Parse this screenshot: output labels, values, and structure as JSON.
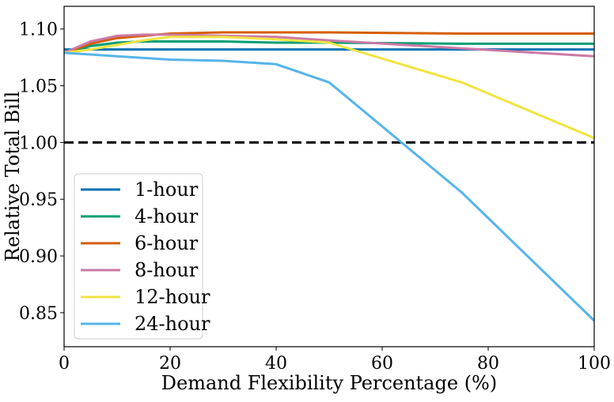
{
  "chart_data": {
    "type": "line",
    "title": "",
    "xlabel": "Demand Flexibility Percentage (%)",
    "ylabel": "Relative Total Bill",
    "xlim": [
      0,
      100
    ],
    "ylim": [
      0.82,
      1.12
    ],
    "xticks": [
      "0",
      "20",
      "40",
      "60",
      "80",
      "100"
    ],
    "yticks": [
      "0.85",
      "0.90",
      "0.95",
      "1.00",
      "1.05",
      "1.10"
    ],
    "grid": false,
    "legend_position": "lower-left",
    "reference_line": {
      "y": 1.0,
      "style": "dashed",
      "color": "#000000"
    },
    "series": [
      {
        "name": "1-hour",
        "color": "#0072b2",
        "x": [
          0,
          5,
          10,
          15,
          20,
          30,
          40,
          50,
          75,
          100
        ],
        "y": [
          1.082,
          1.082,
          1.082,
          1.082,
          1.082,
          1.082,
          1.082,
          1.082,
          1.082,
          1.082
        ]
      },
      {
        "name": "4-hour",
        "color": "#009e73",
        "x": [
          0,
          5,
          10,
          15,
          20,
          30,
          40,
          50,
          75,
          100
        ],
        "y": [
          1.079,
          1.085,
          1.088,
          1.089,
          1.089,
          1.089,
          1.088,
          1.088,
          1.087,
          1.087
        ]
      },
      {
        "name": "6-hour",
        "color": "#d55e00",
        "x": [
          0,
          5,
          10,
          15,
          20,
          30,
          40,
          50,
          75,
          100
        ],
        "y": [
          1.079,
          1.087,
          1.092,
          1.094,
          1.096,
          1.097,
          1.097,
          1.097,
          1.096,
          1.096
        ]
      },
      {
        "name": "8-hour",
        "color": "#cc79a7",
        "x": [
          0,
          5,
          10,
          15,
          20,
          30,
          40,
          50,
          75,
          100
        ],
        "y": [
          1.079,
          1.089,
          1.094,
          1.095,
          1.095,
          1.094,
          1.093,
          1.09,
          1.083,
          1.076
        ]
      },
      {
        "name": "12-hour",
        "color": "#f0e442",
        "x": [
          0,
          5,
          10,
          15,
          20,
          30,
          40,
          50,
          75,
          100
        ],
        "y": [
          1.079,
          1.082,
          1.086,
          1.09,
          1.093,
          1.093,
          1.091,
          1.088,
          1.053,
          1.004
        ]
      },
      {
        "name": "24-hour",
        "color": "#56b4e9",
        "x": [
          0,
          10,
          20,
          30,
          40,
          50,
          75,
          100
        ],
        "y": [
          1.079,
          1.076,
          1.073,
          1.072,
          1.069,
          1.053,
          0.956,
          0.843
        ]
      }
    ]
  }
}
